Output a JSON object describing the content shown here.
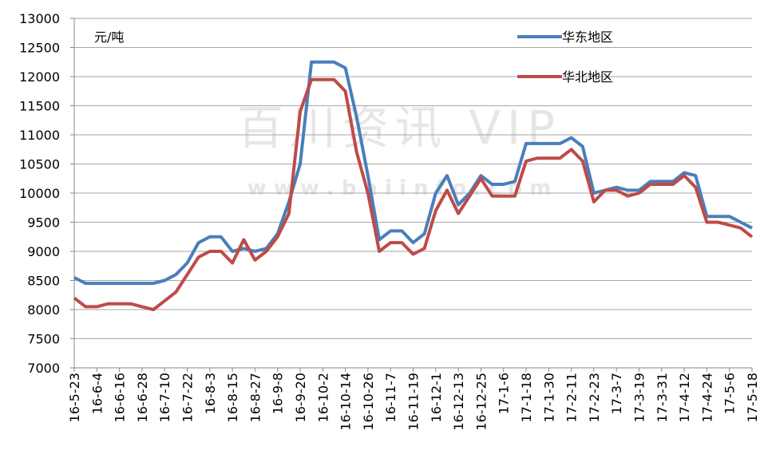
{
  "chart_data": {
    "type": "line",
    "unit_label": "元/吨",
    "watermark": "百川资讯 VIP",
    "watermark_url": "w w w . b a i i n f o . c o m",
    "categories": [
      "16-5-23",
      null,
      "16-6-4",
      null,
      "16-6-16",
      null,
      "16-6-28",
      null,
      "16-7-10",
      null,
      "16-7-22",
      null,
      "16-8-3",
      null,
      "16-8-15",
      null,
      "16-8-27",
      null,
      "16-9-8",
      null,
      "16-9-20",
      null,
      "16-10-2",
      null,
      "16-10-14",
      null,
      "16-10-26",
      null,
      "16-11-7",
      null,
      "16-11-19",
      null,
      "16-12-1",
      null,
      "16-12-13",
      null,
      "16-12-25",
      null,
      "17-1-6",
      null,
      "17-1-18",
      null,
      "17-1-30",
      null,
      "17-2-11",
      null,
      "17-2-23",
      null,
      "17-3-7",
      null,
      "17-3-19",
      null,
      "17-3-31",
      null,
      "17-4-12",
      null,
      "17-4-24",
      null,
      "17-5-6",
      null,
      "17-5-18"
    ],
    "series": [
      {
        "name": "华东地区",
        "color": "#4a7ebb",
        "values": [
          8550,
          8450,
          8450,
          8450,
          8450,
          8450,
          8450,
          8450,
          8500,
          8600,
          8800,
          9150,
          9250,
          9250,
          9000,
          9050,
          9000,
          9050,
          9300,
          9850,
          10500,
          12250,
          12250,
          12250,
          12150,
          11300,
          10300,
          9200,
          9350,
          9350,
          9150,
          9300,
          10000,
          10300,
          9800,
          10000,
          10300,
          10150,
          10150,
          10200,
          10850,
          10850,
          10850,
          10850,
          10950,
          10800,
          10000,
          10050,
          10100,
          10050,
          10050,
          10200,
          10200,
          10200,
          10350,
          10300,
          9600,
          9600,
          9600,
          9500,
          9400
        ]
      },
      {
        "name": "华北地区",
        "color": "#be4b48",
        "values": [
          8200,
          8050,
          8050,
          8100,
          8100,
          8100,
          8050,
          8000,
          8150,
          8300,
          8600,
          8900,
          9000,
          9000,
          8800,
          9200,
          8850,
          9000,
          9250,
          9650,
          11400,
          11950,
          11950,
          11950,
          11750,
          10700,
          10000,
          9000,
          9150,
          9150,
          8950,
          9050,
          9700,
          10050,
          9650,
          9950,
          10250,
          9950,
          9950,
          9950,
          10550,
          10600,
          10600,
          10600,
          10750,
          10550,
          9850,
          10050,
          10050,
          9950,
          10000,
          10150,
          10150,
          10150,
          10300,
          10100,
          9500,
          9500,
          9450,
          9400,
          9250
        ]
      }
    ],
    "ylim": [
      7000,
      13000
    ],
    "yticks": [
      7000,
      7500,
      8000,
      8500,
      9000,
      9500,
      10000,
      10500,
      11000,
      11500,
      12000,
      12500,
      13000
    ],
    "grid": true,
    "legend": "top-right"
  }
}
